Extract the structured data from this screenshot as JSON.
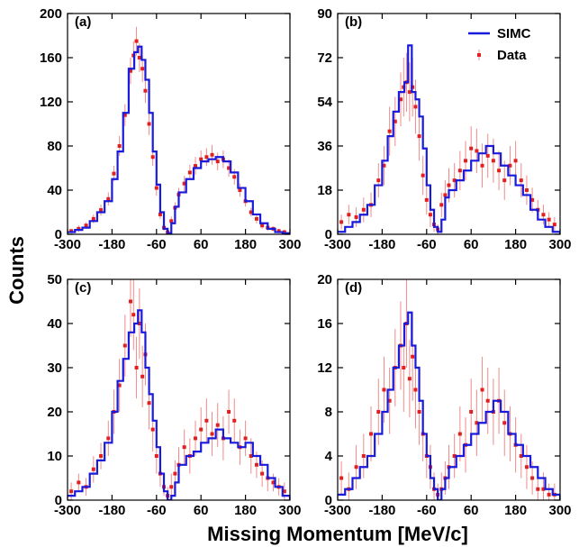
{
  "figure": {
    "xlabel": "Missing Momentum [MeV/c]",
    "ylabel": "Counts"
  },
  "legend": {
    "items": [
      {
        "label": "SIMC",
        "color": "#1a1adb",
        "kind": "line"
      },
      {
        "label": "Data",
        "color": "#e02020",
        "kind": "point-errorbar"
      }
    ]
  },
  "colors": {
    "simc": "#1a1adb",
    "data": "#e02020",
    "errorbar": "#f08a8a"
  },
  "chart_data": [
    {
      "type": "line",
      "panel": "(a)",
      "xlim": [
        -300,
        300
      ],
      "ylim": [
        0,
        200
      ],
      "xticks": [
        -300,
        -180,
        -60,
        60,
        180,
        300
      ],
      "yticks": [
        0,
        40,
        80,
        120,
        160,
        200
      ],
      "series": [
        {
          "name": "SIMC",
          "style": "step",
          "x": [
            -300,
            -280,
            -260,
            -240,
            -220,
            -200,
            -180,
            -165,
            -150,
            -135,
            -120,
            -110,
            -100,
            -90,
            -80,
            -70,
            -60,
            -50,
            -40,
            -30,
            -20,
            -10,
            0,
            20,
            40,
            60,
            80,
            100,
            120,
            140,
            160,
            180,
            200,
            220,
            240,
            260,
            280,
            300
          ],
          "y": [
            2,
            4,
            6,
            12,
            20,
            30,
            50,
            75,
            110,
            150,
            165,
            170,
            158,
            140,
            110,
            75,
            45,
            20,
            5,
            1,
            10,
            25,
            38,
            50,
            60,
            66,
            68,
            70,
            66,
            56,
            42,
            30,
            18,
            10,
            5,
            2,
            1,
            0
          ]
        },
        {
          "name": "Data",
          "x": [
            -290,
            -270,
            -250,
            -230,
            -210,
            -190,
            -175,
            -160,
            -145,
            -130,
            -122,
            -114,
            -106,
            -98,
            -90,
            -80,
            -70,
            -60,
            -50,
            -40,
            -30,
            -20,
            -10,
            0,
            15,
            30,
            45,
            60,
            75,
            90,
            105,
            120,
            135,
            150,
            165,
            180,
            195,
            210,
            225,
            240,
            255,
            270,
            285
          ],
          "y": [
            3,
            5,
            8,
            14,
            22,
            32,
            55,
            80,
            108,
            148,
            162,
            175,
            160,
            150,
            130,
            100,
            70,
            42,
            18,
            6,
            2,
            12,
            24,
            36,
            46,
            56,
            62,
            68,
            70,
            72,
            66,
            68,
            60,
            52,
            40,
            30,
            20,
            14,
            8,
            6,
            5,
            3,
            2
          ],
          "yerr": [
            2,
            3,
            3,
            4,
            5,
            6,
            7,
            9,
            10,
            12,
            13,
            13,
            13,
            12,
            11,
            10,
            8,
            7,
            4,
            3,
            2,
            4,
            5,
            6,
            7,
            7,
            8,
            8,
            8,
            9,
            8,
            8,
            8,
            7,
            6,
            5,
            4,
            4,
            3,
            3,
            2,
            2,
            2
          ]
        }
      ]
    },
    {
      "type": "line",
      "panel": "(b)",
      "xlim": [
        -300,
        300
      ],
      "ylim": [
        0,
        90
      ],
      "xticks": [
        -300,
        -180,
        -60,
        60,
        180,
        300
      ],
      "yticks": [
        0,
        18,
        36,
        54,
        72,
        90
      ],
      "series": [
        {
          "name": "SIMC",
          "style": "step",
          "x": [
            -300,
            -280,
            -260,
            -240,
            -220,
            -200,
            -180,
            -165,
            -150,
            -135,
            -120,
            -110,
            -100,
            -90,
            -80,
            -70,
            -60,
            -50,
            -40,
            -30,
            -20,
            -10,
            0,
            20,
            40,
            60,
            80,
            100,
            120,
            140,
            160,
            180,
            200,
            220,
            240,
            260,
            280,
            300
          ],
          "y": [
            1,
            3,
            5,
            8,
            12,
            20,
            30,
            40,
            50,
            58,
            62,
            77,
            58,
            55,
            48,
            35,
            20,
            10,
            3,
            1,
            6,
            15,
            18,
            22,
            26,
            30,
            33,
            36,
            33,
            28,
            24,
            20,
            16,
            10,
            6,
            3,
            1,
            0
          ]
        },
        {
          "name": "Data",
          "x": [
            -290,
            -270,
            -250,
            -230,
            -210,
            -190,
            -175,
            -160,
            -145,
            -130,
            -122,
            -114,
            -106,
            -98,
            -90,
            -80,
            -70,
            -60,
            -50,
            -40,
            -30,
            -20,
            -10,
            0,
            15,
            30,
            45,
            60,
            75,
            90,
            105,
            120,
            135,
            150,
            165,
            180,
            195,
            210,
            225,
            240,
            255,
            270,
            285
          ],
          "y": [
            5,
            8,
            7,
            10,
            12,
            22,
            28,
            42,
            46,
            55,
            60,
            62,
            58,
            60,
            52,
            40,
            24,
            14,
            8,
            4,
            2,
            12,
            16,
            20,
            22,
            26,
            30,
            35,
            34,
            28,
            32,
            30,
            26,
            22,
            28,
            30,
            22,
            18,
            14,
            10,
            8,
            6,
            4
          ],
          "yerr": [
            3,
            4,
            4,
            5,
            5,
            7,
            8,
            10,
            10,
            11,
            12,
            12,
            12,
            12,
            11,
            10,
            8,
            6,
            5,
            3,
            2,
            5,
            6,
            7,
            7,
            8,
            8,
            9,
            9,
            9,
            9,
            9,
            8,
            8,
            8,
            8,
            7,
            6,
            5,
            4,
            4,
            3,
            3
          ]
        }
      ]
    },
    {
      "type": "line",
      "panel": "(c)",
      "xlim": [
        -300,
        300
      ],
      "ylim": [
        0,
        50
      ],
      "xticks": [
        -300,
        -180,
        -60,
        60,
        180,
        300
      ],
      "yticks": [
        0,
        10,
        20,
        30,
        40,
        50
      ],
      "series": [
        {
          "name": "SIMC",
          "style": "step",
          "x": [
            -300,
            -280,
            -260,
            -240,
            -220,
            -200,
            -180,
            -165,
            -150,
            -135,
            -120,
            -110,
            -100,
            -90,
            -80,
            -70,
            -60,
            -50,
            -40,
            -30,
            -20,
            -10,
            0,
            20,
            40,
            60,
            80,
            100,
            120,
            140,
            160,
            180,
            200,
            220,
            240,
            260,
            280,
            300
          ],
          "y": [
            1,
            2,
            3,
            6,
            9,
            13,
            20,
            27,
            32,
            38,
            40,
            43,
            38,
            30,
            24,
            18,
            12,
            6,
            2,
            0,
            1,
            4,
            8,
            10,
            11,
            13,
            14,
            16,
            14,
            13,
            12,
            13,
            10,
            8,
            5,
            3,
            1,
            0
          ]
        },
        {
          "name": "Data",
          "x": [
            -290,
            -270,
            -250,
            -230,
            -210,
            -190,
            -175,
            -160,
            -145,
            -130,
            -122,
            -114,
            -106,
            -98,
            -90,
            -80,
            -70,
            -60,
            -50,
            -40,
            -30,
            -20,
            -10,
            0,
            15,
            30,
            45,
            60,
            75,
            90,
            105,
            120,
            135,
            150,
            165,
            180,
            195,
            210,
            225,
            240,
            255,
            270,
            285
          ],
          "y": [
            2,
            4,
            3,
            7,
            10,
            14,
            20,
            26,
            35,
            45,
            42,
            30,
            40,
            28,
            33,
            22,
            16,
            10,
            6,
            3,
            1,
            3,
            6,
            8,
            12,
            10,
            14,
            16,
            18,
            15,
            17,
            14,
            20,
            18,
            12,
            14,
            10,
            8,
            6,
            5,
            4,
            3,
            2
          ],
          "yerr": [
            2,
            2,
            2,
            3,
            3,
            4,
            5,
            6,
            7,
            8,
            8,
            7,
            8,
            7,
            7,
            6,
            5,
            4,
            3,
            2,
            2,
            3,
            3,
            4,
            4,
            4,
            4,
            5,
            5,
            5,
            5,
            5,
            5,
            5,
            4,
            4,
            4,
            3,
            3,
            3,
            2,
            2,
            2
          ]
        }
      ]
    },
    {
      "type": "line",
      "panel": "(d)",
      "xlim": [
        -300,
        300
      ],
      "ylim": [
        0,
        20
      ],
      "xticks": [
        -300,
        -180,
        -60,
        60,
        180,
        300
      ],
      "yticks": [
        0,
        4,
        8,
        12,
        16,
        20
      ],
      "series": [
        {
          "name": "SIMC",
          "style": "step",
          "x": [
            -300,
            -280,
            -260,
            -240,
            -220,
            -200,
            -180,
            -165,
            -150,
            -135,
            -120,
            -110,
            -100,
            -90,
            -80,
            -70,
            -60,
            -50,
            -40,
            -30,
            -20,
            -10,
            0,
            20,
            40,
            60,
            80,
            100,
            120,
            140,
            160,
            180,
            200,
            220,
            240,
            260,
            280,
            300
          ],
          "y": [
            0.5,
            1,
            2,
            3,
            4,
            6,
            8,
            10,
            12,
            14,
            16,
            17,
            14,
            12,
            9,
            6,
            4,
            2,
            1,
            0,
            1,
            2,
            3,
            4,
            5,
            6,
            7,
            8,
            9,
            8,
            6,
            5,
            4,
            3,
            2,
            1,
            0.5,
            0
          ]
        },
        {
          "name": "Data",
          "x": [
            -290,
            -270,
            -250,
            -230,
            -210,
            -190,
            -175,
            -160,
            -145,
            -130,
            -122,
            -114,
            -106,
            -98,
            -90,
            -80,
            -70,
            -60,
            -50,
            -40,
            -30,
            -20,
            -10,
            0,
            15,
            30,
            45,
            60,
            75,
            90,
            105,
            120,
            135,
            150,
            165,
            180,
            195,
            210,
            225,
            240,
            255,
            270,
            285
          ],
          "y": [
            2,
            1,
            3,
            4,
            6,
            8,
            10,
            9,
            12,
            14,
            12,
            16,
            11,
            13,
            10,
            8,
            6,
            4,
            3,
            1,
            0.5,
            1,
            2,
            3,
            4,
            6,
            5,
            8,
            7,
            10,
            9,
            8,
            9,
            7,
            6,
            5,
            4,
            3,
            2,
            1,
            1,
            0.5,
            0.5
          ],
          "yerr": [
            1.5,
            1.5,
            2,
            2,
            2.5,
            3,
            3,
            3,
            3.5,
            4,
            4,
            4,
            3.5,
            4,
            3.5,
            3,
            2.5,
            2,
            2,
            1.5,
            1,
            1.5,
            1.5,
            2,
            2,
            2.5,
            2.5,
            3,
            3,
            3,
            3,
            3,
            3,
            3,
            2.5,
            2.5,
            2,
            2,
            1.5,
            1.5,
            1.5,
            1,
            1
          ]
        }
      ]
    }
  ]
}
